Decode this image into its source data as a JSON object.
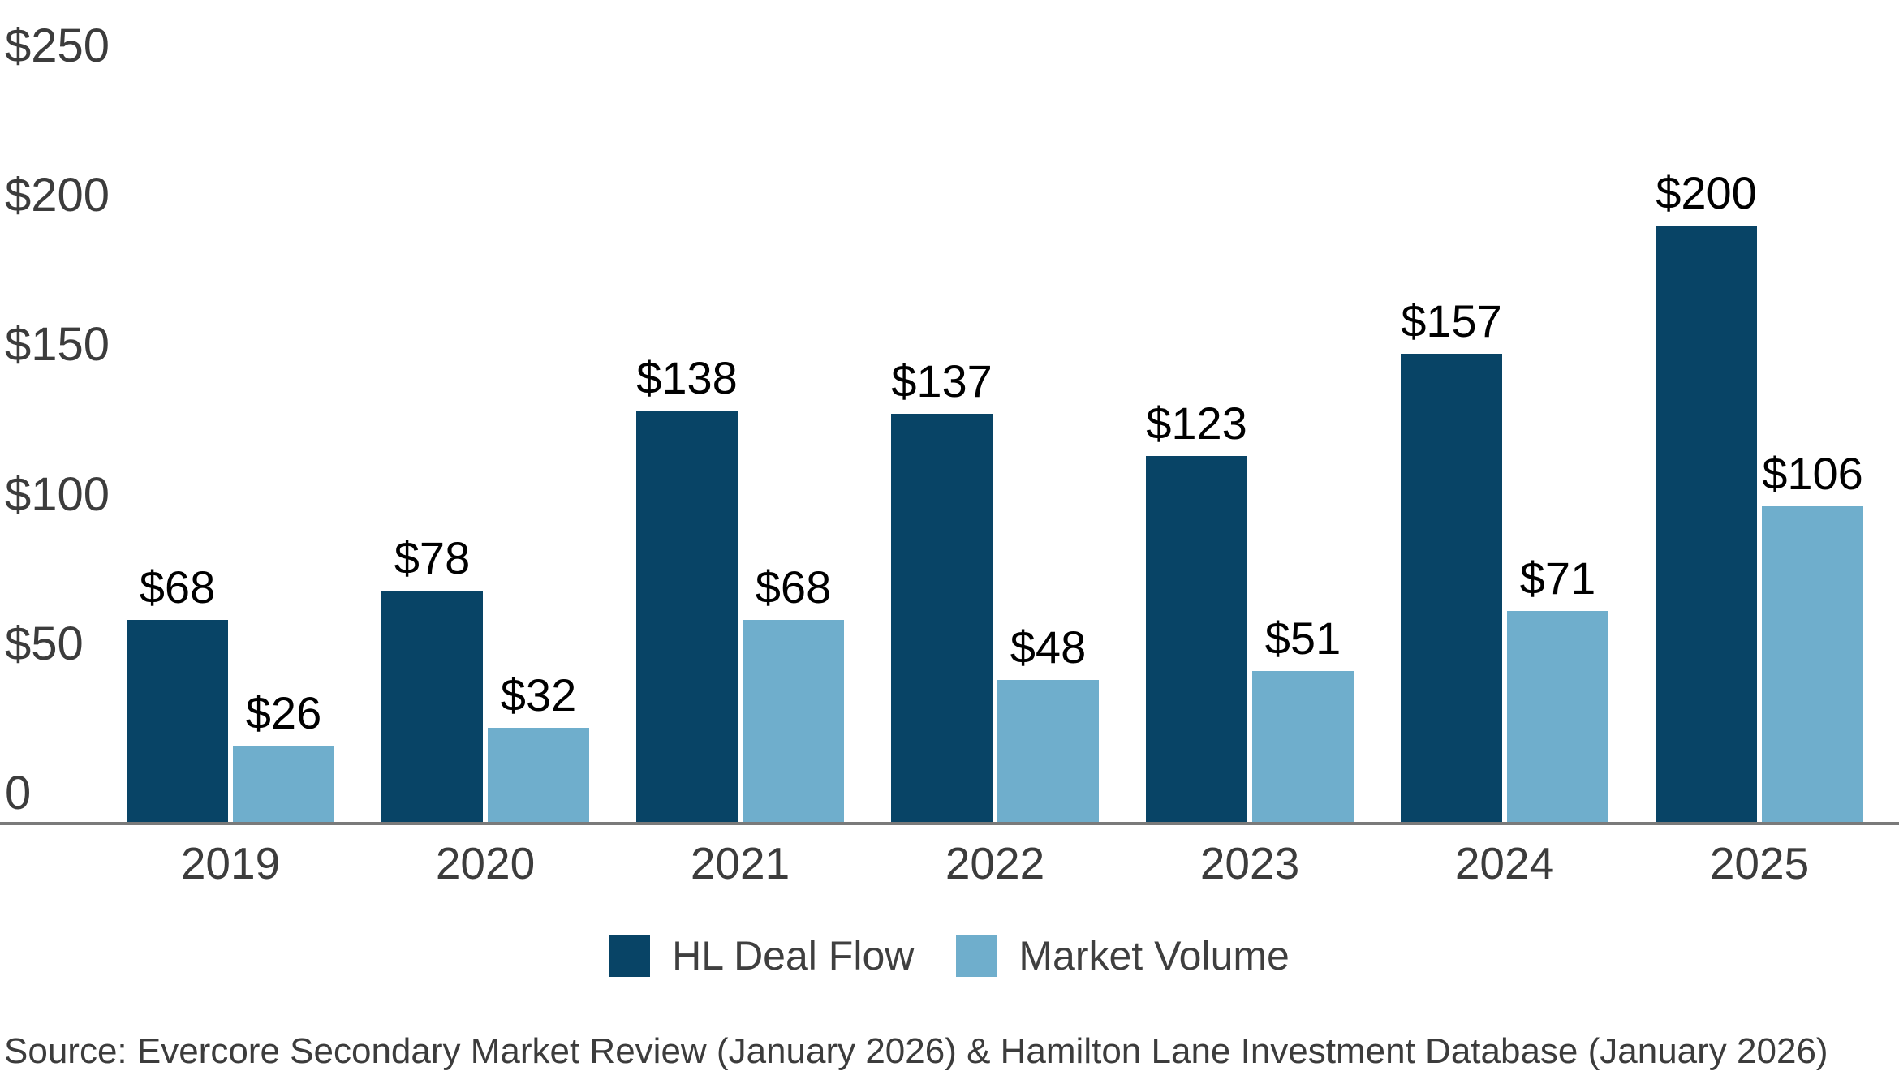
{
  "chart_data": {
    "type": "bar",
    "categories": [
      "2019",
      "2020",
      "2021",
      "2022",
      "2023",
      "2024",
      "2025"
    ],
    "series": [
      {
        "name": "HL Deal Flow",
        "color": "#084466",
        "values": [
          68,
          78,
          138,
          137,
          123,
          157,
          200
        ],
        "labels": [
          "$68",
          "$78",
          "$138",
          "$137",
          "$123",
          "$157",
          "$200"
        ]
      },
      {
        "name": "Market Volume",
        "color": "#6FAECC",
        "values": [
          26,
          32,
          68,
          48,
          51,
          71,
          106
        ],
        "labels": [
          "$26",
          "$32",
          "$68",
          "$48",
          "$51",
          "$71",
          "$106"
        ]
      }
    ],
    "y_axis": {
      "min": 0,
      "max": 250,
      "ticks": [
        {
          "value": 0,
          "label": "0"
        },
        {
          "value": 50,
          "label": "$50"
        },
        {
          "value": 100,
          "label": "$100"
        },
        {
          "value": 150,
          "label": "$150"
        },
        {
          "value": 200,
          "label": "$200"
        },
        {
          "value": 250,
          "label": "$250"
        }
      ]
    },
    "ylim": [
      0,
      250
    ],
    "grid": false,
    "legend_position": "bottom",
    "axis_line_color": "#7A7A7A"
  },
  "source": {
    "text": "Source: Evercore Secondary Market Review (January 2026) & Hamilton Lane Investment Database (January 2026)"
  },
  "colors": {
    "bar_dark": "#084466",
    "bar_light": "#6FAECC",
    "axis_line": "#7A7A7A",
    "axis_text": "#3C3C3C",
    "value_label_text": "#000000",
    "background": "#FFFFFF"
  }
}
